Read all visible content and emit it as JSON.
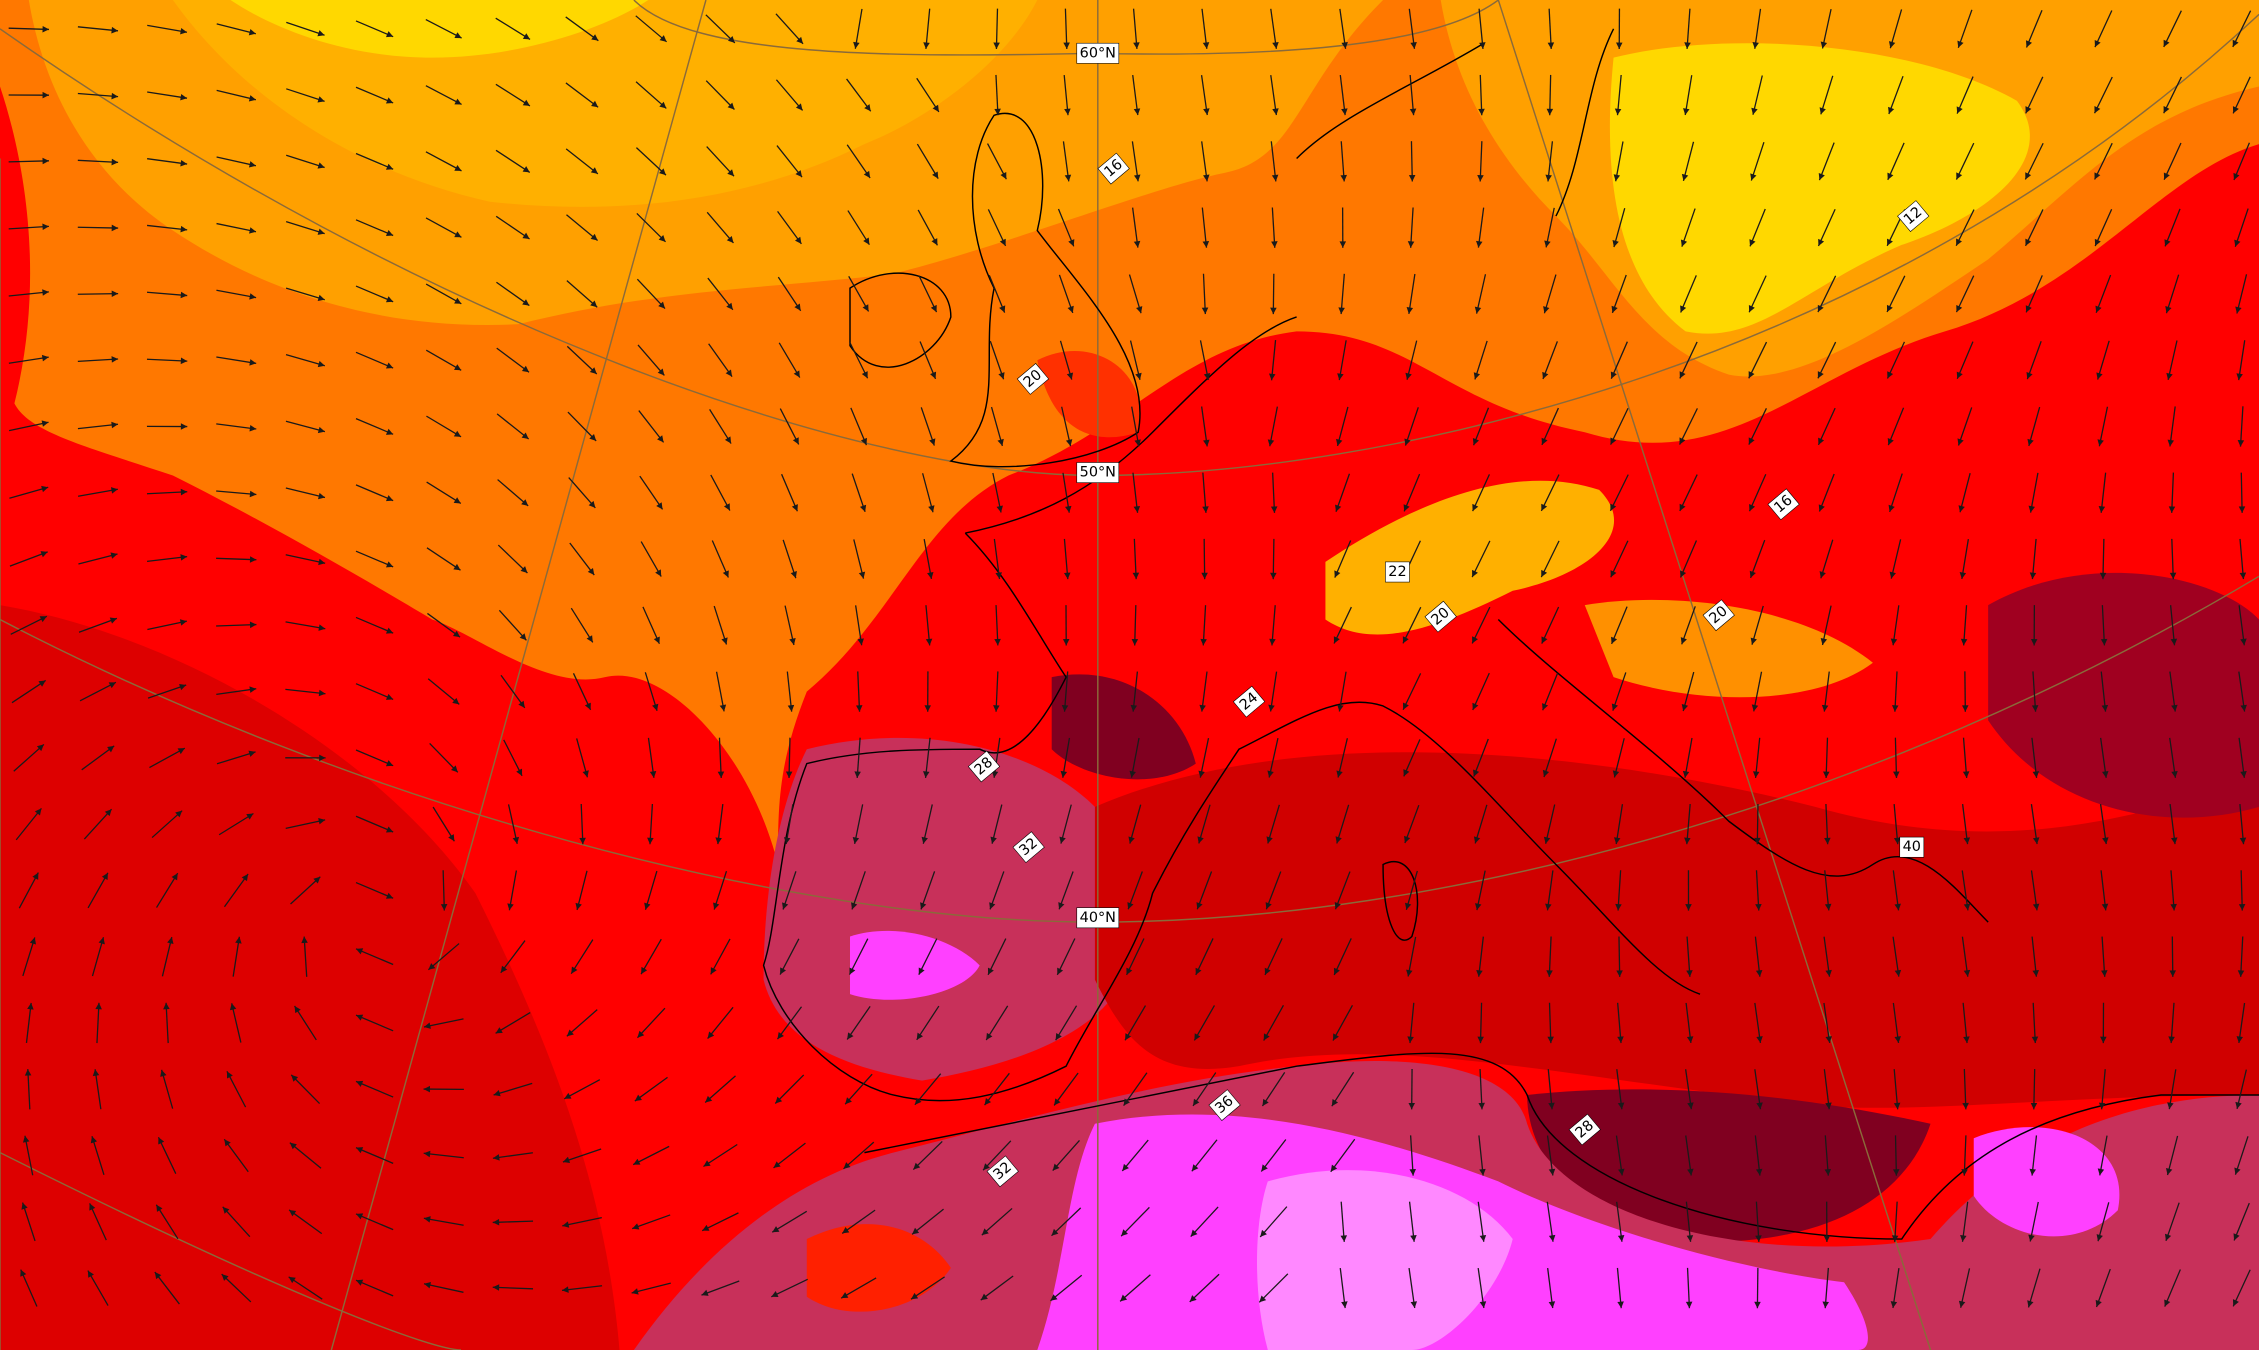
{
  "labels": [
    "60°N",
    "16",
    "12",
    "20",
    "50°N",
    "16",
    "22",
    "20",
    "20",
    "24",
    "28",
    "32",
    "40°N",
    "40",
    "36",
    "28",
    "32"
  ]
}
